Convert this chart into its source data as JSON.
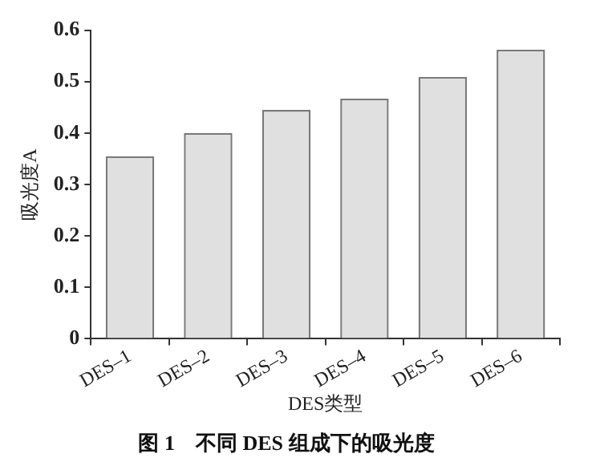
{
  "chart_data": {
    "type": "bar",
    "title": "图 1　不同 DES 组成下的吸光度",
    "xlabel": "DES类型",
    "ylabel": "吸光度A",
    "categories": [
      "DES–1",
      "DES–2",
      "DES–3",
      "DES–4",
      "DES–5",
      "DES–6"
    ],
    "values": [
      0.355,
      0.4,
      0.445,
      0.467,
      0.509,
      0.562
    ],
    "color": "#e0e0e0",
    "ylim": [
      0,
      0.6
    ],
    "yticks": [
      0,
      0.1,
      0.2,
      0.3,
      0.4,
      0.5,
      0.6
    ],
    "grid": false,
    "legend": false
  }
}
